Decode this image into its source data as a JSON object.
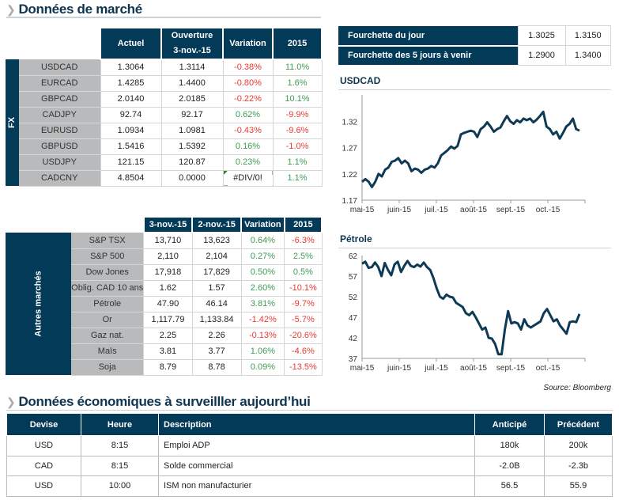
{
  "market": {
    "title": "Données de marché"
  },
  "fx": {
    "side_label": "FX",
    "headers": [
      "Actuel",
      "Ouverture",
      "3-nov.-15",
      "Variation",
      "2015"
    ],
    "rows": [
      {
        "name": "USDCAD",
        "actuel": "1.3064",
        "ouverture": "1.3114",
        "variation": "-0.38%",
        "ytd": "11.0%"
      },
      {
        "name": "EURCAD",
        "actuel": "1.4285",
        "ouverture": "1.4400",
        "variation": "-0.80%",
        "ytd": "1.6%"
      },
      {
        "name": "GBPCAD",
        "actuel": "2.0140",
        "ouverture": "2.0185",
        "variation": "-0.22%",
        "ytd": "10.1%"
      },
      {
        "name": "CADJPY",
        "actuel": "92.74",
        "ouverture": "92.17",
        "variation": "0.62%",
        "ytd": "-9.9%"
      },
      {
        "name": "EURUSD",
        "actuel": "1.0934",
        "ouverture": "1.0981",
        "variation": "-0.43%",
        "ytd": "-9.6%"
      },
      {
        "name": "GBPUSD",
        "actuel": "1.5416",
        "ouverture": "1.5392",
        "variation": "0.16%",
        "ytd": "-1.0%"
      },
      {
        "name": "USDJPY",
        "actuel": "121.15",
        "ouverture": "120.87",
        "variation": "0.23%",
        "ytd": "1.1%"
      },
      {
        "name": "CADCNY",
        "actuel": "4.8504",
        "ouverture": "0.0000",
        "variation": "#DIV/0!",
        "ytd": "1.1%"
      }
    ]
  },
  "other": {
    "side_label": "Autres marchés",
    "headers": [
      "3-nov.-15",
      "2-nov.-15",
      "Variation",
      "2015"
    ],
    "rows": [
      {
        "name": "S&P TSX",
        "cur": "13,710",
        "prev": "13,623",
        "variation": "0.64%",
        "ytd": "-6.3%"
      },
      {
        "name": "S&P 500",
        "cur": "2,110",
        "prev": "2,104",
        "variation": "0.27%",
        "ytd": "2.5%"
      },
      {
        "name": "Dow Jones",
        "cur": "17,918",
        "prev": "17,829",
        "variation": "0.50%",
        "ytd": "0.5%"
      },
      {
        "name": "Oblig. CAD 10 ans",
        "cur": "1.62",
        "prev": "1.57",
        "variation": "2.60%",
        "ytd": "-10.1%"
      },
      {
        "name": "Pétrole",
        "cur": "47.90",
        "prev": "46.14",
        "variation": "3.81%",
        "ytd": "-9.7%"
      },
      {
        "name": "Or",
        "cur": "1,117.79",
        "prev": "1,133.84",
        "variation": "-1.42%",
        "ytd": "-5.7%"
      },
      {
        "name": "Gaz nat.",
        "cur": "2.25",
        "prev": "2.26",
        "variation": "-0.13%",
        "ytd": "-20.6%"
      },
      {
        "name": "Maïs",
        "cur": "3.81",
        "prev": "3.77",
        "variation": "1.06%",
        "ytd": "-4.6%"
      },
      {
        "name": "Soja",
        "cur": "8.79",
        "prev": "8.78",
        "variation": "0.09%",
        "ytd": "-13.5%"
      }
    ]
  },
  "ranges": [
    {
      "label": "Fourchette du  jour",
      "low": "1.3025",
      "high": "1.3150"
    },
    {
      "label": "Fourchette des 5 jours à venir",
      "low": "1.2900",
      "high": "1.3400"
    }
  ],
  "source": "Source: Bloomberg",
  "colors": {
    "navy": "#023a58",
    "neg": "#e83a34",
    "pos": "#3f9b55"
  },
  "chart_data": [
    {
      "type": "line",
      "title": "USDCAD",
      "xlabels": [
        "mai-15",
        "juin-15",
        "juil.-15",
        "août-15",
        "sept.-15",
        "oct.-15"
      ],
      "yticks": [
        1.17,
        1.22,
        1.27,
        1.32
      ],
      "ylim": [
        1.17,
        1.37
      ],
      "values": [
        1.205,
        1.21,
        1.205,
        1.195,
        1.205,
        1.22,
        1.215,
        1.228,
        1.232,
        1.243,
        1.245,
        1.25,
        1.24,
        1.245,
        1.24,
        1.225,
        1.23,
        1.228,
        1.222,
        1.228,
        1.23,
        1.235,
        1.232,
        1.24,
        1.255,
        1.26,
        1.265,
        1.272,
        1.268,
        1.273,
        1.295,
        1.298,
        1.3,
        1.302,
        1.3,
        1.29,
        1.305,
        1.31,
        1.318,
        1.31,
        1.3,
        1.305,
        1.308,
        1.32,
        1.33,
        1.32,
        1.315,
        1.322,
        1.318,
        1.325,
        1.322,
        1.325,
        1.318,
        1.323,
        1.33,
        1.338,
        1.31,
        1.305,
        1.295,
        1.3,
        1.287,
        1.298,
        1.31,
        1.315,
        1.325,
        1.305,
        1.302
      ]
    },
    {
      "type": "line",
      "title": "Pétrole",
      "xlabels": [
        "mai-15",
        "juin-15",
        "juil.-15",
        "août-15",
        "sept.-15",
        "oct.-15"
      ],
      "yticks": [
        37,
        42,
        47,
        52,
        57,
        62
      ],
      "ylim": [
        37,
        62
      ],
      "values": [
        60,
        60.5,
        59,
        59.2,
        60.3,
        59.2,
        57,
        60.2,
        58.5,
        57.2,
        59.8,
        60.5,
        58,
        59.5,
        60.7,
        59.5,
        59.2,
        59.8,
        59.3,
        60.3,
        59.2,
        58.5,
        56.5,
        54,
        52,
        51.5,
        52.5,
        52,
        51.8,
        50.5,
        50,
        49.5,
        48,
        47.5,
        48.3,
        47,
        45.5,
        44,
        44.5,
        42,
        41.8,
        40.5,
        38,
        38,
        44,
        48.5,
        45.5,
        45.8,
        45.5,
        44,
        46.5,
        45,
        44.5,
        45,
        45.5,
        46,
        48,
        49,
        47.5,
        46,
        46.5,
        45,
        44,
        43,
        45.8,
        46,
        45.8,
        47.8
      ]
    }
  ],
  "eco": {
    "title": "Données économiques à surveilller aujourd’hui",
    "headers": [
      "Devise",
      "Heure",
      "Description",
      "Anticipé",
      "Précédent"
    ],
    "rows": [
      [
        "USD",
        "8:15",
        "Emploi ADP",
        "180k",
        "200k"
      ],
      [
        "CAD",
        "8:15",
        "Solde commercial",
        "-2.0B",
        "-2.3b"
      ],
      [
        "USD",
        "10:00",
        "ISM non manufacturier",
        "56.5",
        "55.9"
      ]
    ]
  }
}
